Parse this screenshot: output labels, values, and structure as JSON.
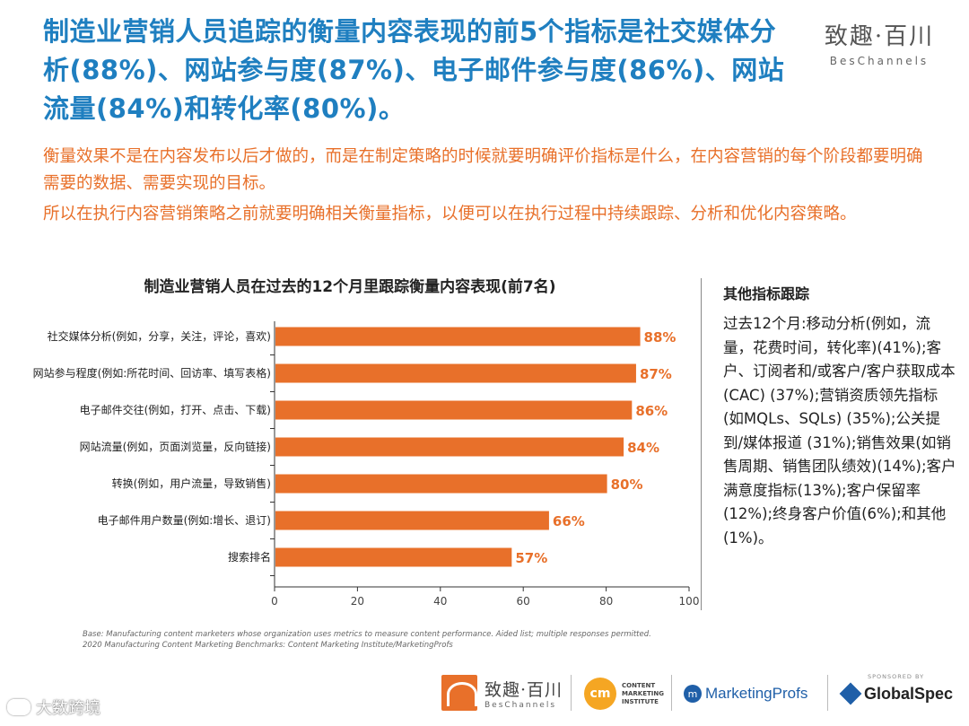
{
  "headline": "制造业营销人员追踪的衡量内容表现的前5个指标是社交媒体分析(88%)、网站参与度(87%)、电子邮件参与度(86%)、网站流量(84%)和转化率(80%)。",
  "logo": {
    "cn": "致趣·百川",
    "en": "BesChannels"
  },
  "paragraphs": {
    "p1": "衡量效果不是在内容发布以后才做的，而是在制定策略的时候就要明确评价指标是什么，在内容营销的每个阶段都要明确需要的数据、需要实现的目标。",
    "p2": "所以在执行内容营销策略之前就要明确相关衡量指标，以便可以在执行过程中持续跟踪、分析和优化内容策略。"
  },
  "chart_data": {
    "type": "bar",
    "orientation": "horizontal",
    "title": "制造业营销人员在过去的12个月里跟踪衡量内容表现(前7名)",
    "categories": [
      "社交媒体分析(例如，分享，关注，评论，喜欢)",
      "网站参与程度(例如:所花时间、回访率、填写表格)",
      "电子邮件交往(例如，打开、点击、下载)",
      "网站流量(例如，页面浏览量，反向链接)",
      "转换(例如，用户流量，导致销售)",
      "电子邮件用户数量(例如:增长、退订)",
      "搜索排名"
    ],
    "values": [
      88,
      87,
      86,
      84,
      80,
      66,
      57
    ],
    "value_labels": [
      "88%",
      "87%",
      "86%",
      "84%",
      "80%",
      "66%",
      "57%"
    ],
    "xlim": [
      0,
      100
    ],
    "xticks": [
      0,
      20,
      40,
      60,
      80,
      100
    ],
    "bar_color": "#e8702a",
    "grid": false
  },
  "side": {
    "title": "其他指标跟踪",
    "body": "过去12个月:移动分析(例如，流量，花费时间，转化率)(41%);客户、订阅者和/或客户/客户获取成本(CAC) (37%);营销资质领先指标(如MQLs、SQLs) (35%);公关提到/媒体报道 (31%);销售效果(如销售周期、销售团队绩效)(14%);客户满意度指标(13%);客户保留率(12%);终身客户价值(6%);和其他(1%)。"
  },
  "footnotes": {
    "line1": "Base: Manufacturing content marketers whose organization uses metrics to measure content performance. Aided list; multiple responses permitted.",
    "line2": "2020 Manufacturing Content Marketing Benchmarks: Content Marketing Institute/MarketingProfs"
  },
  "footer": {
    "watermark": "大数跨境",
    "bes_cn": "致趣·百川",
    "bes_en": "BesChannels",
    "cmi_mark": "cm",
    "cmi_text": [
      "CONTENT",
      "MARKETING",
      "INSTITUTE"
    ],
    "mp_icon": "m",
    "mp_text": "MarketingProfs",
    "gs_sponsor": "SPONSORED BY",
    "gs_text": "GlobalSpec"
  },
  "colors": {
    "headline": "#1f7fc0",
    "accent": "#e8702a"
  }
}
